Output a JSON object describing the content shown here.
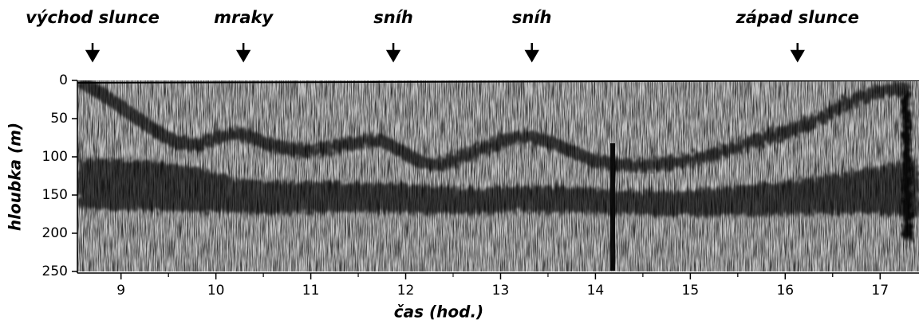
{
  "chart_data": {
    "type": "echogram",
    "xlabel": "čas (hod.)",
    "ylabel": "hloubka (m)",
    "xlim": [
      8.54,
      17.41
    ],
    "xticks": [
      9,
      10,
      11,
      12,
      13,
      14,
      15,
      16,
      17
    ],
    "ylim": [
      0,
      250
    ],
    "yticks": [
      0,
      50,
      100,
      150,
      200,
      250
    ],
    "y_inverted": true,
    "annotations": [
      {
        "text": "východ slunce",
        "x": 8.7
      },
      {
        "text": "mraky",
        "x": 10.29
      },
      {
        "text": "sníh",
        "x": 11.87
      },
      {
        "text": "sníh",
        "x": 13.33
      },
      {
        "text": "západ slunce",
        "x": 16.13
      }
    ]
  }
}
